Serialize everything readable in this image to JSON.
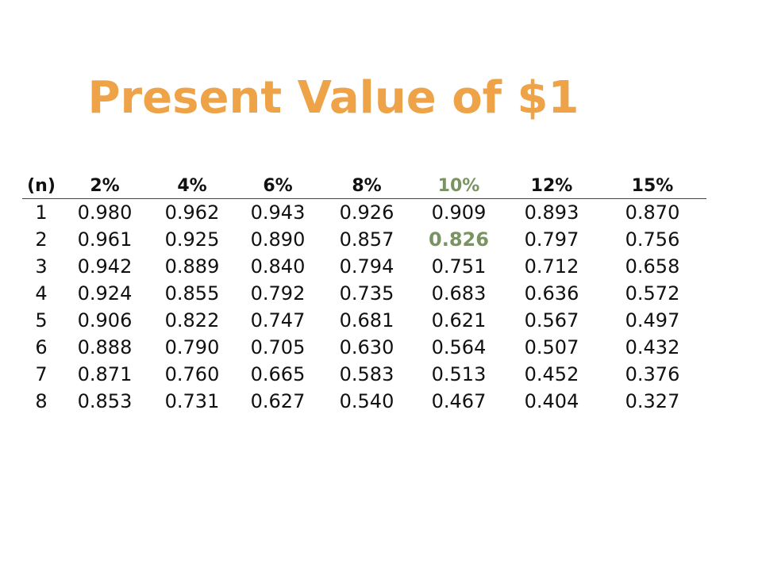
{
  "title": "Present Value of $1",
  "colors": {
    "title": "#EEA349",
    "highlight": "#7A9461",
    "text": "#111111"
  },
  "table": {
    "period_header": "(n)",
    "rate_headers": [
      "2%",
      "4%",
      "6%",
      "8%",
      "10%",
      "12%",
      "15%"
    ],
    "highlight_column": 4,
    "highlight_cell": {
      "row": 1,
      "col": 4
    },
    "rows": [
      {
        "n": "1",
        "values": [
          "0.980",
          "0.962",
          "0.943",
          "0.926",
          "0.909",
          "0.893",
          "0.870"
        ]
      },
      {
        "n": "2",
        "values": [
          "0.961",
          "0.925",
          "0.890",
          "0.857",
          "0.826",
          "0.797",
          "0.756"
        ]
      },
      {
        "n": "3",
        "values": [
          "0.942",
          "0.889",
          "0.840",
          "0.794",
          "0.751",
          "0.712",
          "0.658"
        ]
      },
      {
        "n": "4",
        "values": [
          "0.924",
          "0.855",
          "0.792",
          "0.735",
          "0.683",
          "0.636",
          "0.572"
        ]
      },
      {
        "n": "5",
        "values": [
          "0.906",
          "0.822",
          "0.747",
          "0.681",
          "0.621",
          "0.567",
          "0.497"
        ]
      },
      {
        "n": "6",
        "values": [
          "0.888",
          "0.790",
          "0.705",
          "0.630",
          "0.564",
          "0.507",
          "0.432"
        ]
      },
      {
        "n": "7",
        "values": [
          "0.871",
          "0.760",
          "0.665",
          "0.583",
          "0.513",
          "0.452",
          "0.376"
        ]
      },
      {
        "n": "8",
        "values": [
          "0.853",
          "0.731",
          "0.627",
          "0.540",
          "0.467",
          "0.404",
          "0.327"
        ]
      }
    ]
  }
}
